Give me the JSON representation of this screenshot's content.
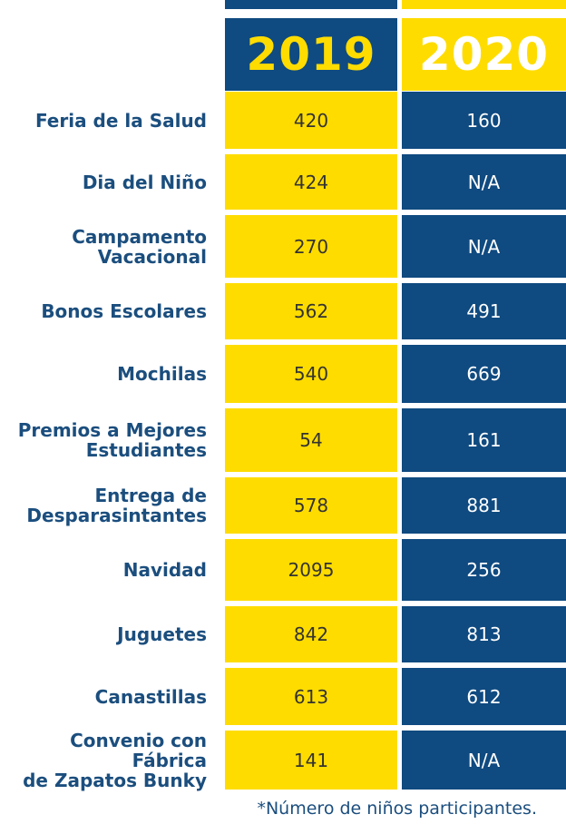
{
  "colors": {
    "navy": "#0f4a80",
    "yellow": "#ffdc00",
    "label_text": "#1b4e7e",
    "cell_text_on_yellow": "#333333",
    "cell_text_on_navy": "#ffffff"
  },
  "chart_data": {
    "type": "table",
    "columns": [
      "2019",
      "2020"
    ],
    "rows": [
      {
        "label": "Feria de la Salud",
        "values": [
          "420",
          "160"
        ]
      },
      {
        "label": "Dia del Niño",
        "values": [
          "424",
          "N/A"
        ]
      },
      {
        "label": "Campamento\nVacacional",
        "values": [
          "270",
          "N/A"
        ]
      },
      {
        "label": "Bonos Escolares",
        "values": [
          "562",
          "491"
        ]
      },
      {
        "label": "Mochilas",
        "values": [
          "540",
          "669"
        ]
      },
      {
        "label": "Premios a Mejores\nEstudiantes",
        "values": [
          "54",
          "161"
        ]
      },
      {
        "label": "Entrega de\nDesparasintantes",
        "values": [
          "578",
          "881"
        ]
      },
      {
        "label": "Navidad",
        "values": [
          "2095",
          "256"
        ]
      },
      {
        "label": "Juguetes",
        "values": [
          "842",
          "813"
        ]
      },
      {
        "label": "Canastillas",
        "values": [
          "613",
          "612"
        ]
      },
      {
        "label": "Convenio con Fábrica\nde Zapatos Bunky",
        "values": [
          "141",
          "N/A"
        ]
      }
    ],
    "footnote": "*Número de niños participantes."
  }
}
